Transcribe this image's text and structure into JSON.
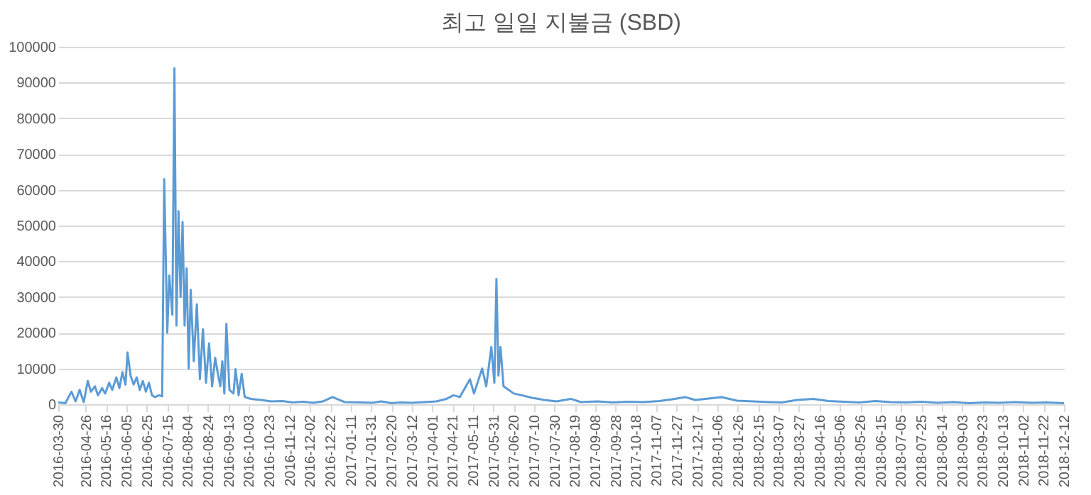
{
  "chart_data": {
    "type": "line",
    "title": "최고 일일 지불금 (SBD)",
    "x": [
      "2016-03-30",
      "2016-04-06",
      "2016-04-12",
      "2016-04-16",
      "2016-04-20",
      "2016-04-24",
      "2016-04-28",
      "2016-05-01",
      "2016-05-05",
      "2016-05-08",
      "2016-05-12",
      "2016-05-15",
      "2016-05-19",
      "2016-05-22",
      "2016-05-26",
      "2016-05-29",
      "2016-06-01",
      "2016-06-04",
      "2016-06-06",
      "2016-06-09",
      "2016-06-12",
      "2016-06-15",
      "2016-06-18",
      "2016-06-21",
      "2016-06-24",
      "2016-06-27",
      "2016-06-30",
      "2016-07-03",
      "2016-07-07",
      "2016-07-10",
      "2016-07-12",
      "2016-07-15",
      "2016-07-17",
      "2016-07-20",
      "2016-07-22",
      "2016-07-24",
      "2016-07-26",
      "2016-07-28",
      "2016-07-30",
      "2016-08-01",
      "2016-08-03",
      "2016-08-05",
      "2016-08-07",
      "2016-08-10",
      "2016-08-13",
      "2016-08-16",
      "2016-08-19",
      "2016-08-22",
      "2016-08-25",
      "2016-08-28",
      "2016-08-31",
      "2016-09-03",
      "2016-09-05",
      "2016-09-07",
      "2016-09-09",
      "2016-09-11",
      "2016-09-14",
      "2016-09-18",
      "2016-09-20",
      "2016-09-23",
      "2016-09-26",
      "2016-09-29",
      "2016-10-05",
      "2016-10-15",
      "2016-10-25",
      "2016-11-05",
      "2016-11-15",
      "2016-11-25",
      "2016-12-05",
      "2016-12-15",
      "2016-12-24",
      "2017-01-05",
      "2017-01-20",
      "2017-02-01",
      "2017-02-10",
      "2017-02-20",
      "2017-03-01",
      "2017-03-12",
      "2017-03-25",
      "2017-04-05",
      "2017-04-15",
      "2017-04-22",
      "2017-04-28",
      "2017-05-08",
      "2017-05-12",
      "2017-05-20",
      "2017-05-24",
      "2017-05-29",
      "2017-06-01",
      "2017-06-03",
      "2017-06-05",
      "2017-06-07",
      "2017-06-10",
      "2017-06-15",
      "2017-06-20",
      "2017-06-28",
      "2017-07-08",
      "2017-07-20",
      "2017-08-01",
      "2017-08-15",
      "2017-08-25",
      "2017-09-10",
      "2017-09-25",
      "2017-10-10",
      "2017-10-25",
      "2017-11-10",
      "2017-11-25",
      "2017-12-05",
      "2017-12-15",
      "2017-12-25",
      "2018-01-10",
      "2018-01-25",
      "2018-02-10",
      "2018-02-25",
      "2018-03-10",
      "2018-03-25",
      "2018-04-10",
      "2018-04-25",
      "2018-05-10",
      "2018-05-25",
      "2018-06-10",
      "2018-06-25",
      "2018-07-10",
      "2018-07-25",
      "2018-08-10",
      "2018-08-25",
      "2018-09-10",
      "2018-09-25",
      "2018-10-10",
      "2018-10-25",
      "2018-11-10",
      "2018-11-25",
      "2018-12-12"
    ],
    "series": [
      {
        "color": "#5b9bd5",
        "values": [
          500,
          300,
          3500,
          800,
          4000,
          600,
          6500,
          3500,
          5000,
          2500,
          4500,
          3000,
          6000,
          4000,
          7500,
          4500,
          9000,
          5500,
          14500,
          8000,
          5500,
          7500,
          4000,
          6500,
          3500,
          6000,
          2500,
          2000,
          2500,
          2200,
          63000,
          20000,
          36000,
          25000,
          94000,
          22000,
          54000,
          30000,
          51000,
          22000,
          38000,
          10000,
          32000,
          12000,
          28000,
          7000,
          21000,
          6000,
          17000,
          5000,
          13000,
          8000,
          5000,
          12000,
          3000,
          22500,
          4000,
          3000,
          9800,
          2500,
          8500,
          2000,
          1500,
          1200,
          800,
          900,
          500,
          700,
          400,
          800,
          2000,
          600,
          500,
          400,
          800,
          300,
          500,
          400,
          600,
          800,
          1500,
          2500,
          2000,
          7000,
          3000,
          10000,
          5000,
          16000,
          6000,
          35000,
          8000,
          16000,
          5000,
          4000,
          3000,
          2500,
          1800,
          1200,
          800,
          1500,
          600,
          800,
          500,
          700,
          600,
          900,
          1500,
          2000,
          1200,
          1500,
          2000,
          1000,
          800,
          600,
          500,
          1200,
          1500,
          900,
          700,
          500,
          900,
          600,
          500,
          700,
          400,
          600,
          300,
          500,
          400,
          600,
          400,
          500,
          300
        ]
      }
    ],
    "xlim": [
      "2016-03-30",
      "2018-12-12"
    ],
    "xticks": [
      "2016-03-30",
      "2016-04-26",
      "2016-05-16",
      "2016-06-05",
      "2016-06-25",
      "2016-07-15",
      "2016-08-04",
      "2016-08-24",
      "2016-09-13",
      "2016-10-03",
      "2016-10-23",
      "2016-11-12",
      "2016-12-02",
      "2016-12-22",
      "2017-01-11",
      "2017-01-31",
      "2017-02-20",
      "2017-03-12",
      "2017-04-01",
      "2017-04-21",
      "2017-05-11",
      "2017-05-31",
      "2017-06-20",
      "2017-07-10",
      "2017-07-30",
      "2017-08-19",
      "2017-09-08",
      "2017-09-28",
      "2017-10-18",
      "2017-11-07",
      "2017-11-27",
      "2017-12-17",
      "2018-01-06",
      "2018-01-26",
      "2018-02-15",
      "2018-03-07",
      "2018-03-27",
      "2018-04-16",
      "2018-05-06",
      "2018-05-26",
      "2018-06-15",
      "2018-07-05",
      "2018-07-25",
      "2018-08-14",
      "2018-09-03",
      "2018-09-23",
      "2018-10-13",
      "2018-11-02",
      "2018-11-22",
      "2018-12-12"
    ],
    "ylim": [
      0,
      100000
    ],
    "yticks": [
      0,
      10000,
      20000,
      30000,
      40000,
      50000,
      60000,
      70000,
      80000,
      90000,
      100000
    ],
    "grid": "y"
  }
}
